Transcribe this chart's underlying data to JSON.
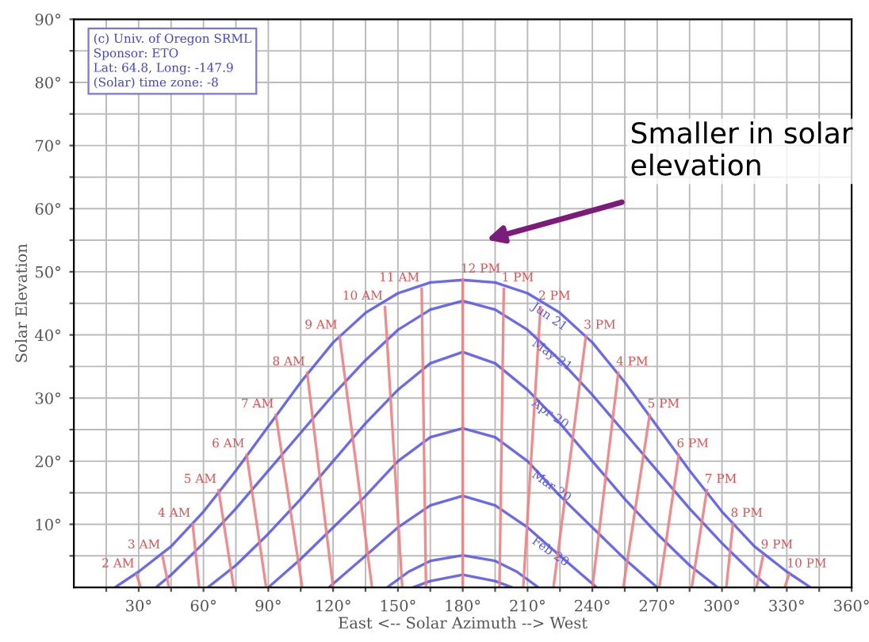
{
  "chart_data": {
    "type": "line",
    "xlabel": "East <-- Solar Azimuth --> West",
    "ylabel": "Solar Elevation",
    "xlim": [
      0,
      360
    ],
    "ylim": [
      0,
      90
    ],
    "xticks": [
      {
        "value": 15,
        "label": null
      },
      {
        "value": 30,
        "label": "30°"
      },
      {
        "value": 45,
        "label": null
      },
      {
        "value": 60,
        "label": "60°"
      },
      {
        "value": 75,
        "label": null
      },
      {
        "value": 90,
        "label": "90°"
      },
      {
        "value": 105,
        "label": null
      },
      {
        "value": 120,
        "label": "120°"
      },
      {
        "value": 135,
        "label": null
      },
      {
        "value": 150,
        "label": "150°"
      },
      {
        "value": 165,
        "label": null
      },
      {
        "value": 180,
        "label": "180°"
      },
      {
        "value": 195,
        "label": null
      },
      {
        "value": 210,
        "label": "210°"
      },
      {
        "value": 225,
        "label": null
      },
      {
        "value": 240,
        "label": "240°"
      },
      {
        "value": 255,
        "label": null
      },
      {
        "value": 270,
        "label": "270°"
      },
      {
        "value": 285,
        "label": null
      },
      {
        "value": 300,
        "label": "300°"
      },
      {
        "value": 315,
        "label": null
      },
      {
        "value": 330,
        "label": "330°"
      },
      {
        "value": 345,
        "label": null
      },
      {
        "value": 360,
        "label": "360°"
      }
    ],
    "yticks": [
      {
        "value": 5,
        "label": null
      },
      {
        "value": 10,
        "label": "10°"
      },
      {
        "value": 15,
        "label": null
      },
      {
        "value": 20,
        "label": "20°"
      },
      {
        "value": 25,
        "label": null
      },
      {
        "value": 30,
        "label": "30°"
      },
      {
        "value": 35,
        "label": null
      },
      {
        "value": 40,
        "label": "40°"
      },
      {
        "value": 45,
        "label": null
      },
      {
        "value": 50,
        "label": "50°"
      },
      {
        "value": 55,
        "label": null
      },
      {
        "value": 60,
        "label": "60°"
      },
      {
        "value": 65,
        "label": null
      },
      {
        "value": 70,
        "label": "70°"
      },
      {
        "value": 75,
        "label": null
      },
      {
        "value": 80,
        "label": "80°"
      },
      {
        "value": 85,
        "label": null
      },
      {
        "value": 90,
        "label": "90°"
      }
    ],
    "grid": true,
    "legend": false,
    "marker": "none",
    "line_style": "solid",
    "series": [
      {
        "name": "Jun 21",
        "color": "#5a5ae8",
        "x": [
          19,
          30,
          45,
          60,
          75,
          90,
          105,
          120,
          135,
          150,
          165,
          180,
          195,
          210,
          225,
          240,
          255,
          270,
          285,
          300,
          315,
          330,
          341
        ],
        "values": [
          0,
          2.5,
          6.5,
          12,
          18.5,
          25.5,
          32.5,
          38.8,
          43.5,
          46.6,
          48.3,
          48.7,
          48.3,
          46.6,
          43.5,
          38.8,
          32.5,
          25.5,
          18.5,
          12,
          6.5,
          2.5,
          0
        ]
      },
      {
        "name": "May 21",
        "color": "#5a5ae8",
        "x": [
          38,
          45,
          60,
          75,
          90,
          105,
          120,
          135,
          150,
          165,
          180,
          195,
          210,
          225,
          240,
          255,
          270,
          285,
          300,
          315,
          322
        ],
        "values": [
          0,
          2,
          7,
          12.5,
          18.5,
          24.5,
          30.5,
          36,
          40.8,
          44,
          45.4,
          44,
          40.8,
          36,
          30.5,
          24.5,
          18.5,
          12.5,
          7,
          2,
          0
        ]
      },
      {
        "name": "Apr 20",
        "color": "#5a5ae8",
        "x": [
          62,
          75,
          90,
          105,
          120,
          135,
          150,
          165,
          180,
          195,
          210,
          225,
          240,
          255,
          270,
          285,
          298
        ],
        "values": [
          0,
          3.5,
          8.5,
          14,
          20,
          26,
          31.3,
          35.5,
          37.3,
          35.5,
          31.3,
          26,
          20,
          14,
          8.5,
          3.5,
          0
        ]
      },
      {
        "name": "Mar 20",
        "color": "#5a5ae8",
        "x": [
          90,
          105,
          120,
          135,
          150,
          165,
          180,
          195,
          210,
          225,
          240,
          255,
          270
        ],
        "values": [
          0,
          4.5,
          9.5,
          14.5,
          20,
          23.8,
          25.2,
          23.8,
          20,
          14.5,
          9.5,
          4.5,
          0
        ]
      },
      {
        "name": "Feb 20",
        "color": "#5a5ae8",
        "x": [
          118,
          135,
          150,
          165,
          180,
          195,
          210,
          225,
          242
        ],
        "values": [
          0,
          5,
          9.5,
          13,
          14.5,
          13,
          9.5,
          5,
          0
        ]
      },
      {
        "color": "#5a5ae8",
        "x": [
          145,
          155,
          165,
          180,
          195,
          205,
          215
        ],
        "values": [
          0,
          2.5,
          4.2,
          5.1,
          4.2,
          2.5,
          0
        ]
      },
      {
        "color": "#5a5ae8",
        "x": [
          157,
          165,
          180,
          195,
          203
        ],
        "values": [
          0,
          1,
          2,
          1,
          0
        ]
      },
      {
        "color": "#f08080",
        "x": [
          29,
          31
        ],
        "values": [
          2,
          0
        ]
      },
      {
        "color": "#f08080",
        "x": [
          41,
          44
        ],
        "values": [
          5,
          0
        ]
      },
      {
        "color": "#f08080",
        "x": [
          55,
          58
        ],
        "values": [
          10,
          0
        ]
      },
      {
        "color": "#f08080",
        "x": [
          67,
          74
        ],
        "values": [
          15.4,
          0
        ]
      },
      {
        "color": "#f08080",
        "x": [
          80,
          89
        ],
        "values": [
          21,
          0
        ]
      },
      {
        "color": "#f08080",
        "x": [
          93.5,
          105.7
        ],
        "values": [
          27.3,
          0
        ]
      },
      {
        "color": "#f08080",
        "x": [
          108,
          120
        ],
        "values": [
          34,
          0
        ]
      },
      {
        "color": "#f08080",
        "x": [
          123,
          138
        ],
        "values": [
          39.8,
          0
        ]
      },
      {
        "color": "#f08080",
        "x": [
          144,
          152
        ],
        "values": [
          44.4,
          0
        ]
      },
      {
        "color": "#f08080",
        "x": [
          161,
          163
        ],
        "values": [
          47.3,
          0
        ]
      },
      {
        "color": "#f08080",
        "x": [
          180,
          180
        ],
        "values": [
          48.7,
          0
        ]
      },
      {
        "color": "#f08080",
        "x": [
          199,
          197
        ],
        "values": [
          47.3,
          0
        ]
      },
      {
        "color": "#f08080",
        "x": [
          216,
          208
        ],
        "values": [
          44.4,
          0
        ]
      },
      {
        "color": "#f08080",
        "x": [
          237,
          222
        ],
        "values": [
          39.8,
          0
        ]
      },
      {
        "color": "#f08080",
        "x": [
          252,
          240
        ],
        "values": [
          34,
          0
        ]
      },
      {
        "color": "#f08080",
        "x": [
          266.5,
          254.3
        ],
        "values": [
          27.3,
          0
        ]
      },
      {
        "color": "#f08080",
        "x": [
          280,
          271
        ],
        "values": [
          21,
          0
        ]
      },
      {
        "color": "#f08080",
        "x": [
          293,
          286
        ],
        "values": [
          15.4,
          0
        ]
      },
      {
        "color": "#f08080",
        "x": [
          305,
          302
        ],
        "values": [
          10,
          0
        ]
      },
      {
        "color": "#f08080",
        "x": [
          319,
          316
        ],
        "values": [
          5,
          0
        ]
      },
      {
        "color": "#f08080",
        "x": [
          331,
          329
        ],
        "values": [
          2,
          0
        ]
      }
    ],
    "annotations": [
      "(c) Univ. of Oregon SRML\nSponsor: ETO\nLat: 64.8, Long: -147.9\n(Solar) time zone: -8",
      {
        "text": "2 AM",
        "x": 29,
        "y": 2
      },
      {
        "text": "3 AM",
        "x": 41,
        "y": 5
      },
      {
        "text": "4 AM",
        "x": 55,
        "y": 10
      },
      {
        "text": "5 AM",
        "x": 67,
        "y": 15.4
      },
      {
        "text": "6 AM",
        "x": 80,
        "y": 21
      },
      {
        "text": "7 AM",
        "x": 93.5,
        "y": 27.3
      },
      {
        "text": "8 AM",
        "x": 108,
        "y": 34
      },
      {
        "text": "9 AM",
        "x": 123,
        "y": 39.8
      },
      {
        "text": "10 AM",
        "x": 144,
        "y": 44.4
      },
      {
        "text": "11 AM",
        "x": 161,
        "y": 47.3
      },
      {
        "text": "12 PM",
        "x": 180,
        "y": 48.7
      },
      {
        "text": "1 PM",
        "x": 199,
        "y": 47.3
      },
      {
        "text": "2 PM",
        "x": 216,
        "y": 44.4
      },
      {
        "text": "3 PM",
        "x": 237,
        "y": 39.8
      },
      {
        "text": "4 PM",
        "x": 252,
        "y": 34
      },
      {
        "text": "5 PM",
        "x": 266.5,
        "y": 27.3
      },
      {
        "text": "6 PM",
        "x": 280,
        "y": 21
      },
      {
        "text": "7 PM",
        "x": 293,
        "y": 15.4
      },
      {
        "text": "8 PM",
        "x": 305,
        "y": 10
      },
      {
        "text": "9 PM",
        "x": 319,
        "y": 5
      },
      {
        "text": "10 PM",
        "x": 331,
        "y": 2
      },
      "Smaller in solar elevation"
    ]
  }
}
